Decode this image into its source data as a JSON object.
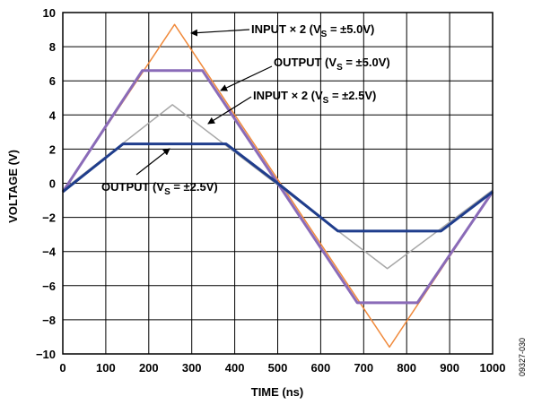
{
  "chart_data": {
    "type": "line",
    "xlabel": "TIME (ns)",
    "ylabel": "VOLTAGE (V)",
    "xlim": [
      0,
      1000
    ],
    "ylim": [
      -10,
      10
    ],
    "grid": true,
    "x_ticks": [
      0,
      100,
      200,
      300,
      400,
      500,
      600,
      700,
      800,
      900,
      1000
    ],
    "x_tick_labels": [
      "0",
      "100",
      "200",
      "300",
      "400",
      "500",
      "600",
      "700",
      "800",
      "900",
      "1000"
    ],
    "y_ticks": [
      -10,
      -8,
      -6,
      -4,
      -2,
      0,
      2,
      4,
      6,
      8,
      10
    ],
    "y_tick_labels": [
      "−10",
      "−8",
      "−6",
      "−4",
      "−2",
      "0",
      "2",
      "4",
      "6",
      "8",
      "10"
    ],
    "series": [
      {
        "name": "INPUT × 2 (VS = ±5.0V)",
        "color": "#f08a3c",
        "x": [
          0,
          260,
          760,
          1000
        ],
        "y": [
          -0.5,
          9.3,
          -9.6,
          -0.5
        ]
      },
      {
        "name": "INPUT × 2 (VS = ±2.5V)",
        "color": "#a8a8a8",
        "x": [
          0,
          255,
          755,
          1000
        ],
        "y": [
          -0.4,
          4.6,
          -5.0,
          -0.4
        ]
      },
      {
        "name": "OUTPUT (VS = ±5.0V)",
        "color": "#8a6bb8",
        "x": [
          0,
          185,
          325,
          500,
          685,
          825,
          1000
        ],
        "y": [
          -0.5,
          6.6,
          6.6,
          0,
          -7.0,
          -7.0,
          -0.5
        ]
      },
      {
        "name": "OUTPUT (VS = ±2.5V)",
        "color": "#1f3d8c",
        "x": [
          0,
          140,
          380,
          500,
          640,
          880,
          1000
        ],
        "y": [
          -0.5,
          2.3,
          2.3,
          0,
          -2.8,
          -2.8,
          -0.5
        ]
      }
    ],
    "annotations": [
      {
        "main": "INPUT × 2 (V",
        "sub": "S",
        "tail": " = ±5.0V)"
      },
      {
        "main": "OUTPUT (V",
        "sub": "S",
        "tail": " = ±5.0V)"
      },
      {
        "main": "INPUT × 2 (V",
        "sub": "S",
        "tail": " = ±2.5V)"
      },
      {
        "main": "OUTPUT (V",
        "sub": "S",
        "tail": " = ±2.5V)"
      }
    ],
    "figure_id": "09327-030"
  }
}
